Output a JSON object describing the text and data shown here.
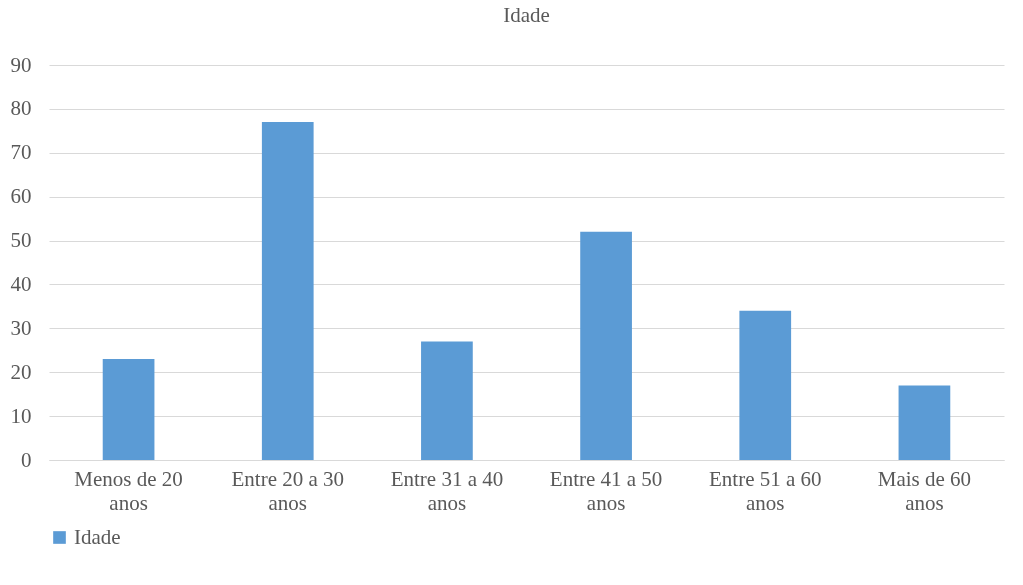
{
  "chart_data": {
    "type": "bar",
    "title": "Idade",
    "categories": [
      "Menos de 20 anos",
      "Entre 20 a 30 anos",
      "Entre 31 a 40 anos",
      "Entre 41 a 50 anos",
      "Entre 51 a 60 anos",
      "Mais de 60 anos"
    ],
    "series": [
      {
        "name": "Idade",
        "color": "#5b9bd5",
        "values": [
          23,
          77,
          27,
          52,
          34,
          17
        ]
      }
    ],
    "ylim": [
      0,
      90
    ],
    "yticks": [
      0,
      10,
      20,
      30,
      40,
      50,
      60,
      70,
      80,
      90
    ],
    "grid": "y",
    "legend": "bottom"
  }
}
